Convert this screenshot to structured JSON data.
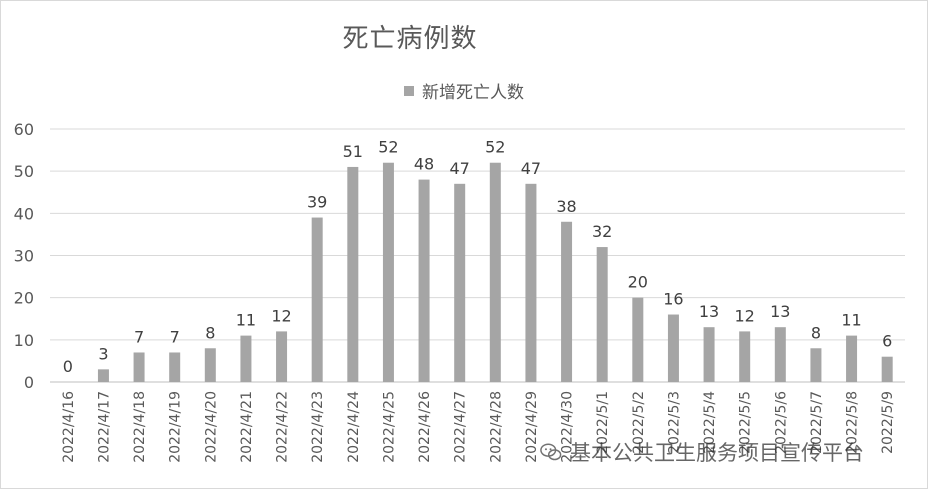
{
  "chart_data": {
    "type": "bar",
    "title": "死亡病例数",
    "categories": [
      "2022/4/16",
      "2022/4/17",
      "2022/4/18",
      "2022/4/19",
      "2022/4/20",
      "2022/4/21",
      "2022/4/22",
      "2022/4/23",
      "2022/4/24",
      "2022/4/25",
      "2022/4/26",
      "2022/4/27",
      "2022/4/28",
      "2022/4/29",
      "2022/4/30",
      "2022/5/1",
      "2022/5/2",
      "2022/5/3",
      "2022/5/4",
      "2022/5/5",
      "2022/5/6",
      "2022/5/7",
      "2022/5/8",
      "2022/5/9"
    ],
    "series": [
      {
        "name": "新增死亡人数",
        "values": [
          0,
          3,
          7,
          7,
          8,
          11,
          12,
          39,
          51,
          52,
          48,
          47,
          52,
          47,
          38,
          32,
          20,
          16,
          13,
          12,
          13,
          8,
          11,
          6
        ]
      }
    ],
    "ylim": [
      0,
      60
    ],
    "yticks": [
      0,
      10,
      20,
      30,
      40,
      50,
      60
    ],
    "grid": true,
    "legend_position": "top-center",
    "bar_color": "#a5a5a5"
  },
  "watermark": {
    "text": "基本公共卫生服务项目宣传平台",
    "icon": "wechat-icon"
  }
}
